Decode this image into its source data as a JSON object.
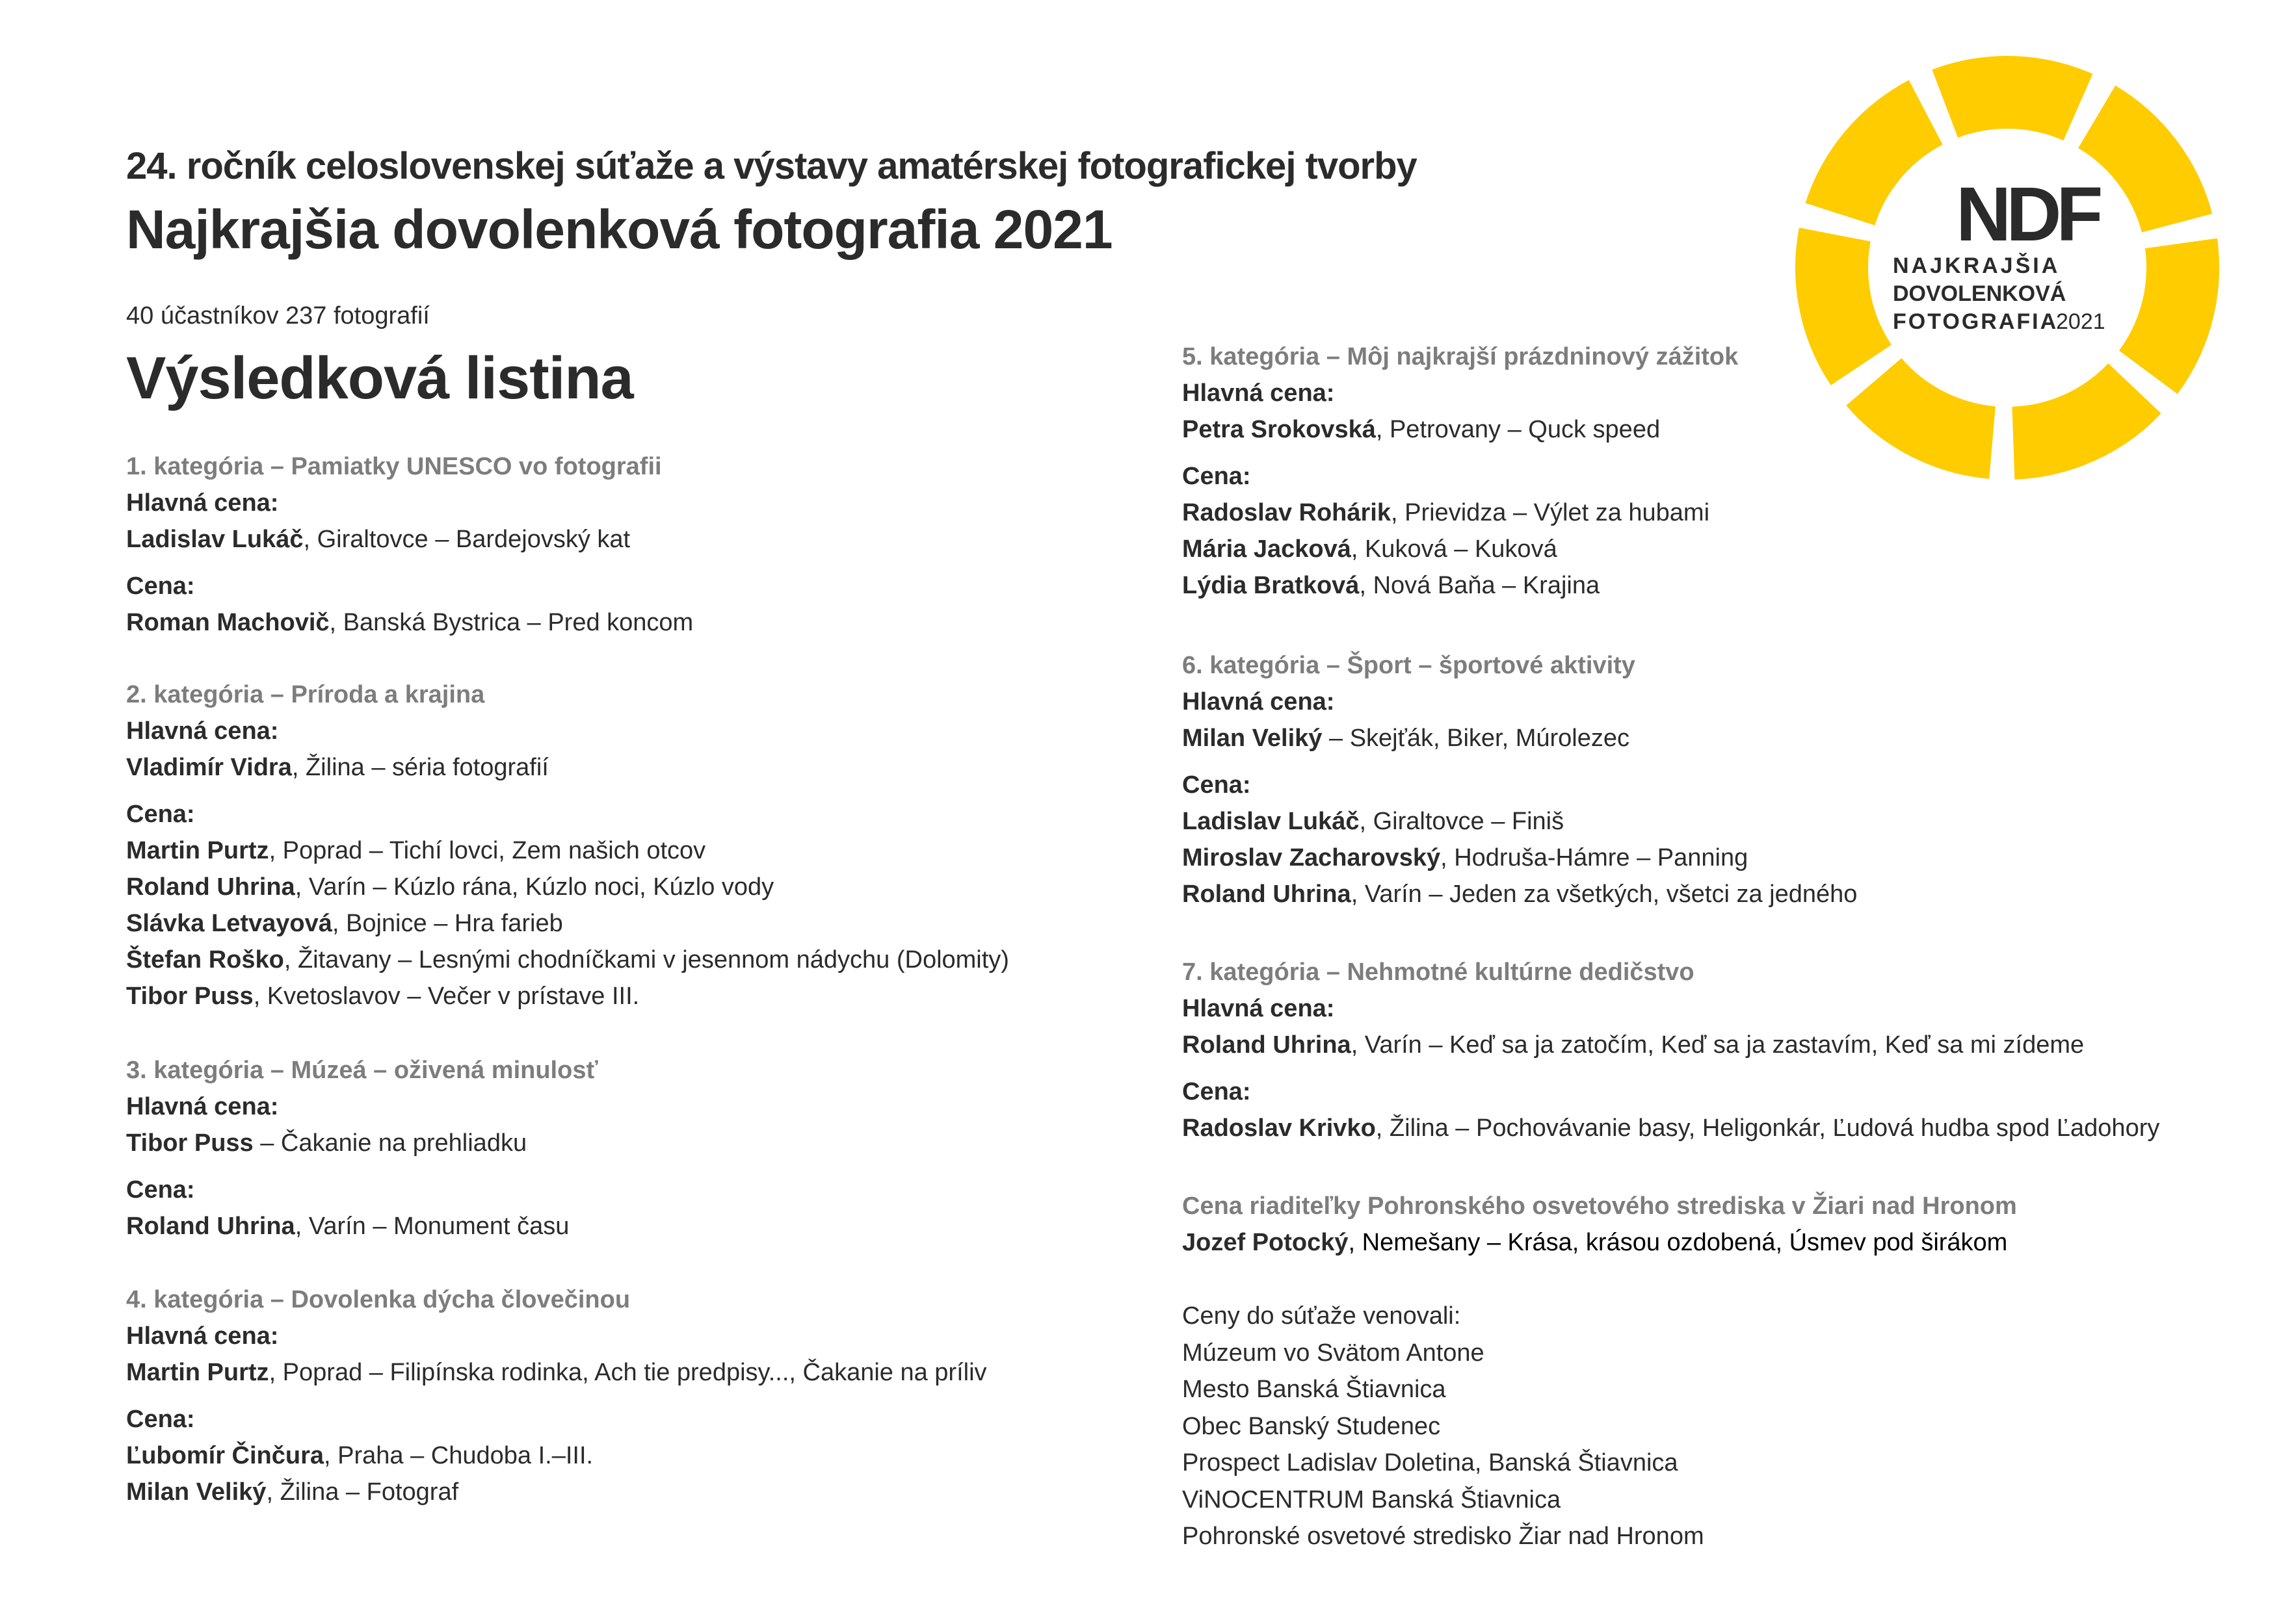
{
  "header": {
    "edition": "24. ročník celoslovenskej súťaže a výstavy amatérskej fotografickej tvorby",
    "title": "Najkrajšia dovolenková fotografia 2021",
    "stats": "40 účastníkov  237 fotografií",
    "results_heading": "Výsledková listina"
  },
  "logo": {
    "letters": "NDF",
    "line1": "NAJKRAJŠIA",
    "line2": "DOVOLENKOVÁ",
    "line3": "FOTOGRAFIA",
    "year": "2021",
    "color": "#FFCC00"
  },
  "categories": [
    {
      "title": "1. kategória – Pamiatky UNESCO vo fotografii",
      "groups": [
        {
          "label": "Hlavná cena:",
          "entries": [
            {
              "name": "Ladislav Lukáč",
              "rest": ", Giraltovce – Bardejovský kat"
            }
          ]
        },
        {
          "label": "Cena:",
          "entries": [
            {
              "name": "Roman Machovič",
              "rest": ", Banská Bystrica – Pred koncom"
            }
          ]
        }
      ]
    },
    {
      "title": "2. kategória – Príroda a krajina",
      "groups": [
        {
          "label": "Hlavná cena:",
          "entries": [
            {
              "name": "Vladimír Vidra",
              "rest": ", Žilina – séria fotografií"
            }
          ]
        },
        {
          "label": "Cena:",
          "entries": [
            {
              "name": "Martin Purtz",
              "rest": ", Poprad – Tichí lovci, Zem našich otcov"
            },
            {
              "name": "Roland Uhrina",
              "rest": ", Varín – Kúzlo rána, Kúzlo noci, Kúzlo vody"
            },
            {
              "name": "Slávka Letvayová",
              "rest": ", Bojnice – Hra farieb"
            },
            {
              "name": "Štefan Roško",
              "rest": ", Žitavany – Lesnými chodníčkami v jesennom nádychu (Dolomity)"
            },
            {
              "name": "Tibor Puss",
              "rest": ", Kvetoslavov – Večer v prístave III."
            }
          ]
        }
      ]
    },
    {
      "title": "3. kategória – Múzeá – oživená minulosť",
      "groups": [
        {
          "label": "Hlavná cena:",
          "entries": [
            {
              "name": "Tibor Puss",
              "rest": " – Čakanie na prehliadku"
            }
          ]
        },
        {
          "label": "Cena:",
          "entries": [
            {
              "name": "Roland Uhrina",
              "rest": ", Varín – Monument času"
            }
          ]
        }
      ]
    },
    {
      "title": "4. kategória – Dovolenka dýcha človečinou",
      "groups": [
        {
          "label": "Hlavná cena:",
          "entries": [
            {
              "name": "Martin Purtz",
              "rest": ", Poprad – Filipínska rodinka, Ach tie predpisy..., Čakanie na príliv"
            }
          ]
        },
        {
          "label": "Cena:",
          "entries": [
            {
              "name": "Ľubomír Činčura",
              "rest": ", Praha – Chudoba I.–III."
            },
            {
              "name": "Milan Veliký",
              "rest": ",  Žilina – Fotograf"
            }
          ]
        }
      ]
    },
    {
      "title": "5. kategória – Môj najkrajší prázdninový zážitok",
      "groups": [
        {
          "label": "Hlavná cena:",
          "entries": [
            {
              "name": "Petra Srokovská",
              "rest": ", Petrovany – Quck speed"
            }
          ]
        },
        {
          "label": "Cena:",
          "entries": [
            {
              "name": "Radoslav Rohárik",
              "rest": ", Prievidza – Výlet za hubami"
            },
            {
              "name": "Mária Jacková",
              "rest": ", Kuková – Kuková"
            },
            {
              "name": "Lýdia Bratková",
              "rest": ", Nová Baňa – Krajina"
            }
          ]
        }
      ]
    },
    {
      "title": "6. kategória – Šport – športové aktivity",
      "groups": [
        {
          "label": "Hlavná cena:",
          "entries": [
            {
              "name": "Milan Veliký",
              "rest": " – Skejťák, Biker, Múrolezec"
            }
          ]
        },
        {
          "label": "Cena:",
          "entries": [
            {
              "name": "Ladislav Lukáč",
              "rest": ", Giraltovce – Finiš"
            },
            {
              "name": "Miroslav Zacharovský",
              "rest": ", Hodruša-Hámre – Panning"
            },
            {
              "name": "Roland Uhrina",
              "rest": ", Varín – Jeden za všetkých, všetci za jedného"
            }
          ]
        }
      ]
    },
    {
      "title": "7. kategória – Nehmotné kultúrne dedičstvo",
      "groups": [
        {
          "label": "Hlavná cena:",
          "entries": [
            {
              "name": "Roland Uhrina",
              "rest": ", Varín – Keď sa ja zatočím, Keď sa ja zastavím, Keď sa mi zídeme"
            }
          ]
        },
        {
          "label": "Cena:",
          "entries": [
            {
              "name": "Radoslav Krivko",
              "rest": ", Žilina – Pochovávanie basy, Heligonkár, Ľudová hudba spod Ľadohory"
            }
          ]
        }
      ]
    },
    {
      "title": "Cena riaditeľky Pohronského osvetového strediska v Žiari nad Hronom",
      "groups": [
        {
          "label": "",
          "entries": [
            {
              "name": "Jozef Potocký",
              "rest": ", Nemešany – Krása, krásou ozdobená, Úsmev pod širákom"
            }
          ]
        }
      ]
    }
  ],
  "sponsors": {
    "heading": "Ceny do súťaže venovali:",
    "items": [
      "Múzeum vo Svätom Antone",
      "Mesto Banská Štiavnica",
      "Obec Banský Studenec",
      "Prospect Ladislav Doletina, Banská Štiavnica",
      "ViNOCENTRUM Banská Štiavnica",
      "Pohronské osvetové stredisko Žiar nad Hronom"
    ]
  }
}
